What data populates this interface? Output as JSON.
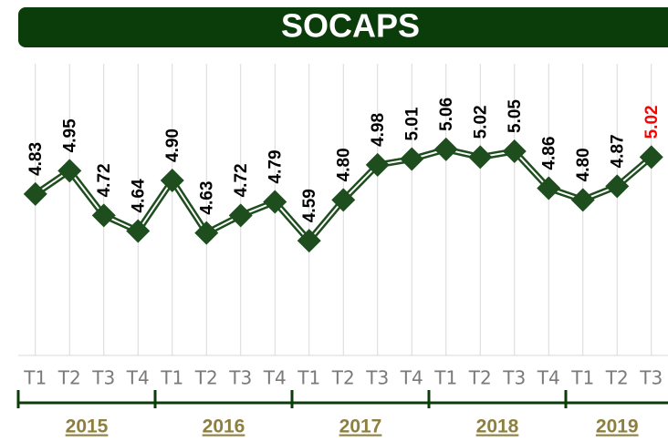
{
  "chart_data": {
    "type": "line",
    "title": "SOCAPS",
    "categories": [
      "T1",
      "T2",
      "T3",
      "T4",
      "T1",
      "T2",
      "T3",
      "T4",
      "T1",
      "T2",
      "T3",
      "T4",
      "T1",
      "T2",
      "T3",
      "T4",
      "T1",
      "T2",
      "T3"
    ],
    "groups": [
      {
        "label": "2015",
        "span": 4
      },
      {
        "label": "2016",
        "span": 4
      },
      {
        "label": "2017",
        "span": 4
      },
      {
        "label": "2018",
        "span": 4
      },
      {
        "label": "2019",
        "span": 3
      }
    ],
    "series": [
      {
        "name": "SOCAPS",
        "color": "#1e4d1e",
        "values": [
          4.83,
          4.95,
          4.72,
          4.64,
          4.9,
          4.63,
          4.72,
          4.79,
          4.59,
          4.8,
          4.98,
          5.01,
          5.06,
          5.02,
          5.05,
          4.86,
          4.8,
          4.87,
          5.02
        ],
        "value_labels": [
          "4.83",
          "4.95",
          "4.72",
          "4.64",
          "4.90",
          "4.63",
          "4.72",
          "4.79",
          "4.59",
          "4.80",
          "4.98",
          "5.01",
          "5.06",
          "5.02",
          "5.05",
          "4.86",
          "4.80",
          "4.87",
          "5.02"
        ]
      }
    ],
    "ylim": [
      4.0,
      5.5
    ],
    "label_color": "#000000",
    "highlight_color": "#ff0000",
    "highlight_index": 18,
    "grid": true
  }
}
